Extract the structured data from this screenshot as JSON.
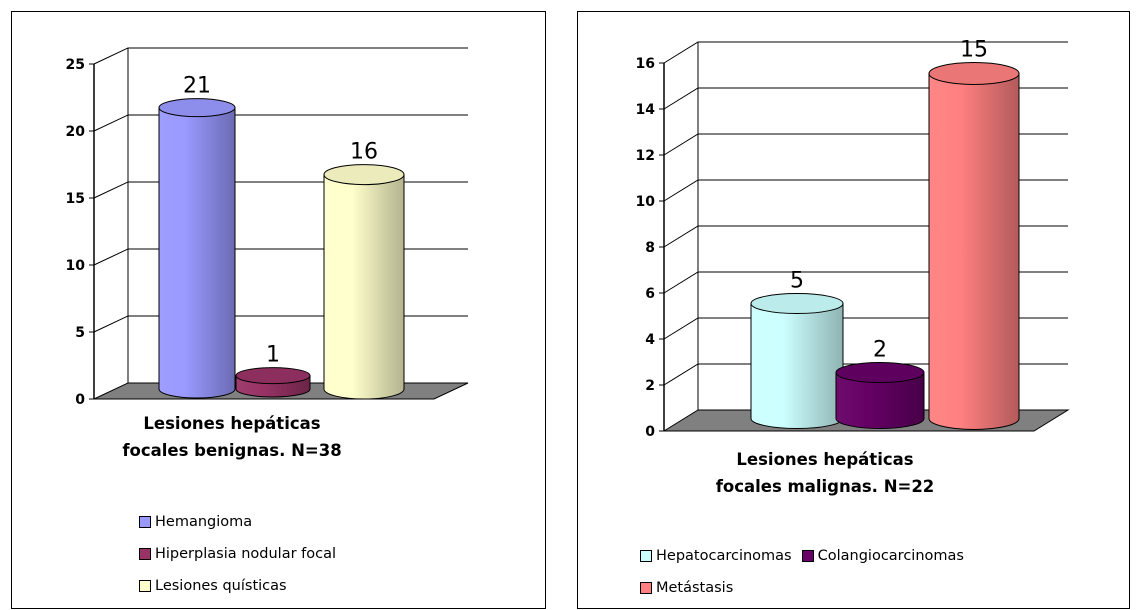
{
  "chart_data": [
    {
      "type": "bar",
      "style": "3d-cylinder",
      "title": "",
      "xlabel": "Lesiones hepáticas focales benignas. N=38",
      "ylabel": "",
      "ylim": [
        0,
        25
      ],
      "yticks": [
        "0",
        "5",
        "10",
        "15",
        "20",
        "25"
      ],
      "grid": true,
      "legend_position": "bottom",
      "series": [
        {
          "name": "Hemangioma",
          "value": 21,
          "color": "#9999ff"
        },
        {
          "name": "Hiperplasia nodular focal",
          "value": 1,
          "color": "#993366"
        },
        {
          "name": "Lesiones quísticas",
          "value": 16,
          "color": "#ffffcc"
        }
      ]
    },
    {
      "type": "bar",
      "style": "3d-cylinder",
      "title": "",
      "xlabel": "Lesiones hepáticas focales malignas. N=22",
      "ylabel": "",
      "ylim": [
        0,
        16
      ],
      "yticks": [
        "0",
        "2",
        "4",
        "6",
        "8",
        "10",
        "12",
        "14",
        "16"
      ],
      "grid": true,
      "legend_position": "bottom",
      "series": [
        {
          "name": "Hepatocarcinomas",
          "value": 5,
          "color": "#ccffff"
        },
        {
          "name": "Colangiocarcinomas",
          "value": 2,
          "color": "#660066"
        },
        {
          "name": "Metástasis",
          "value": 15,
          "color": "#ff8080"
        }
      ]
    }
  ]
}
